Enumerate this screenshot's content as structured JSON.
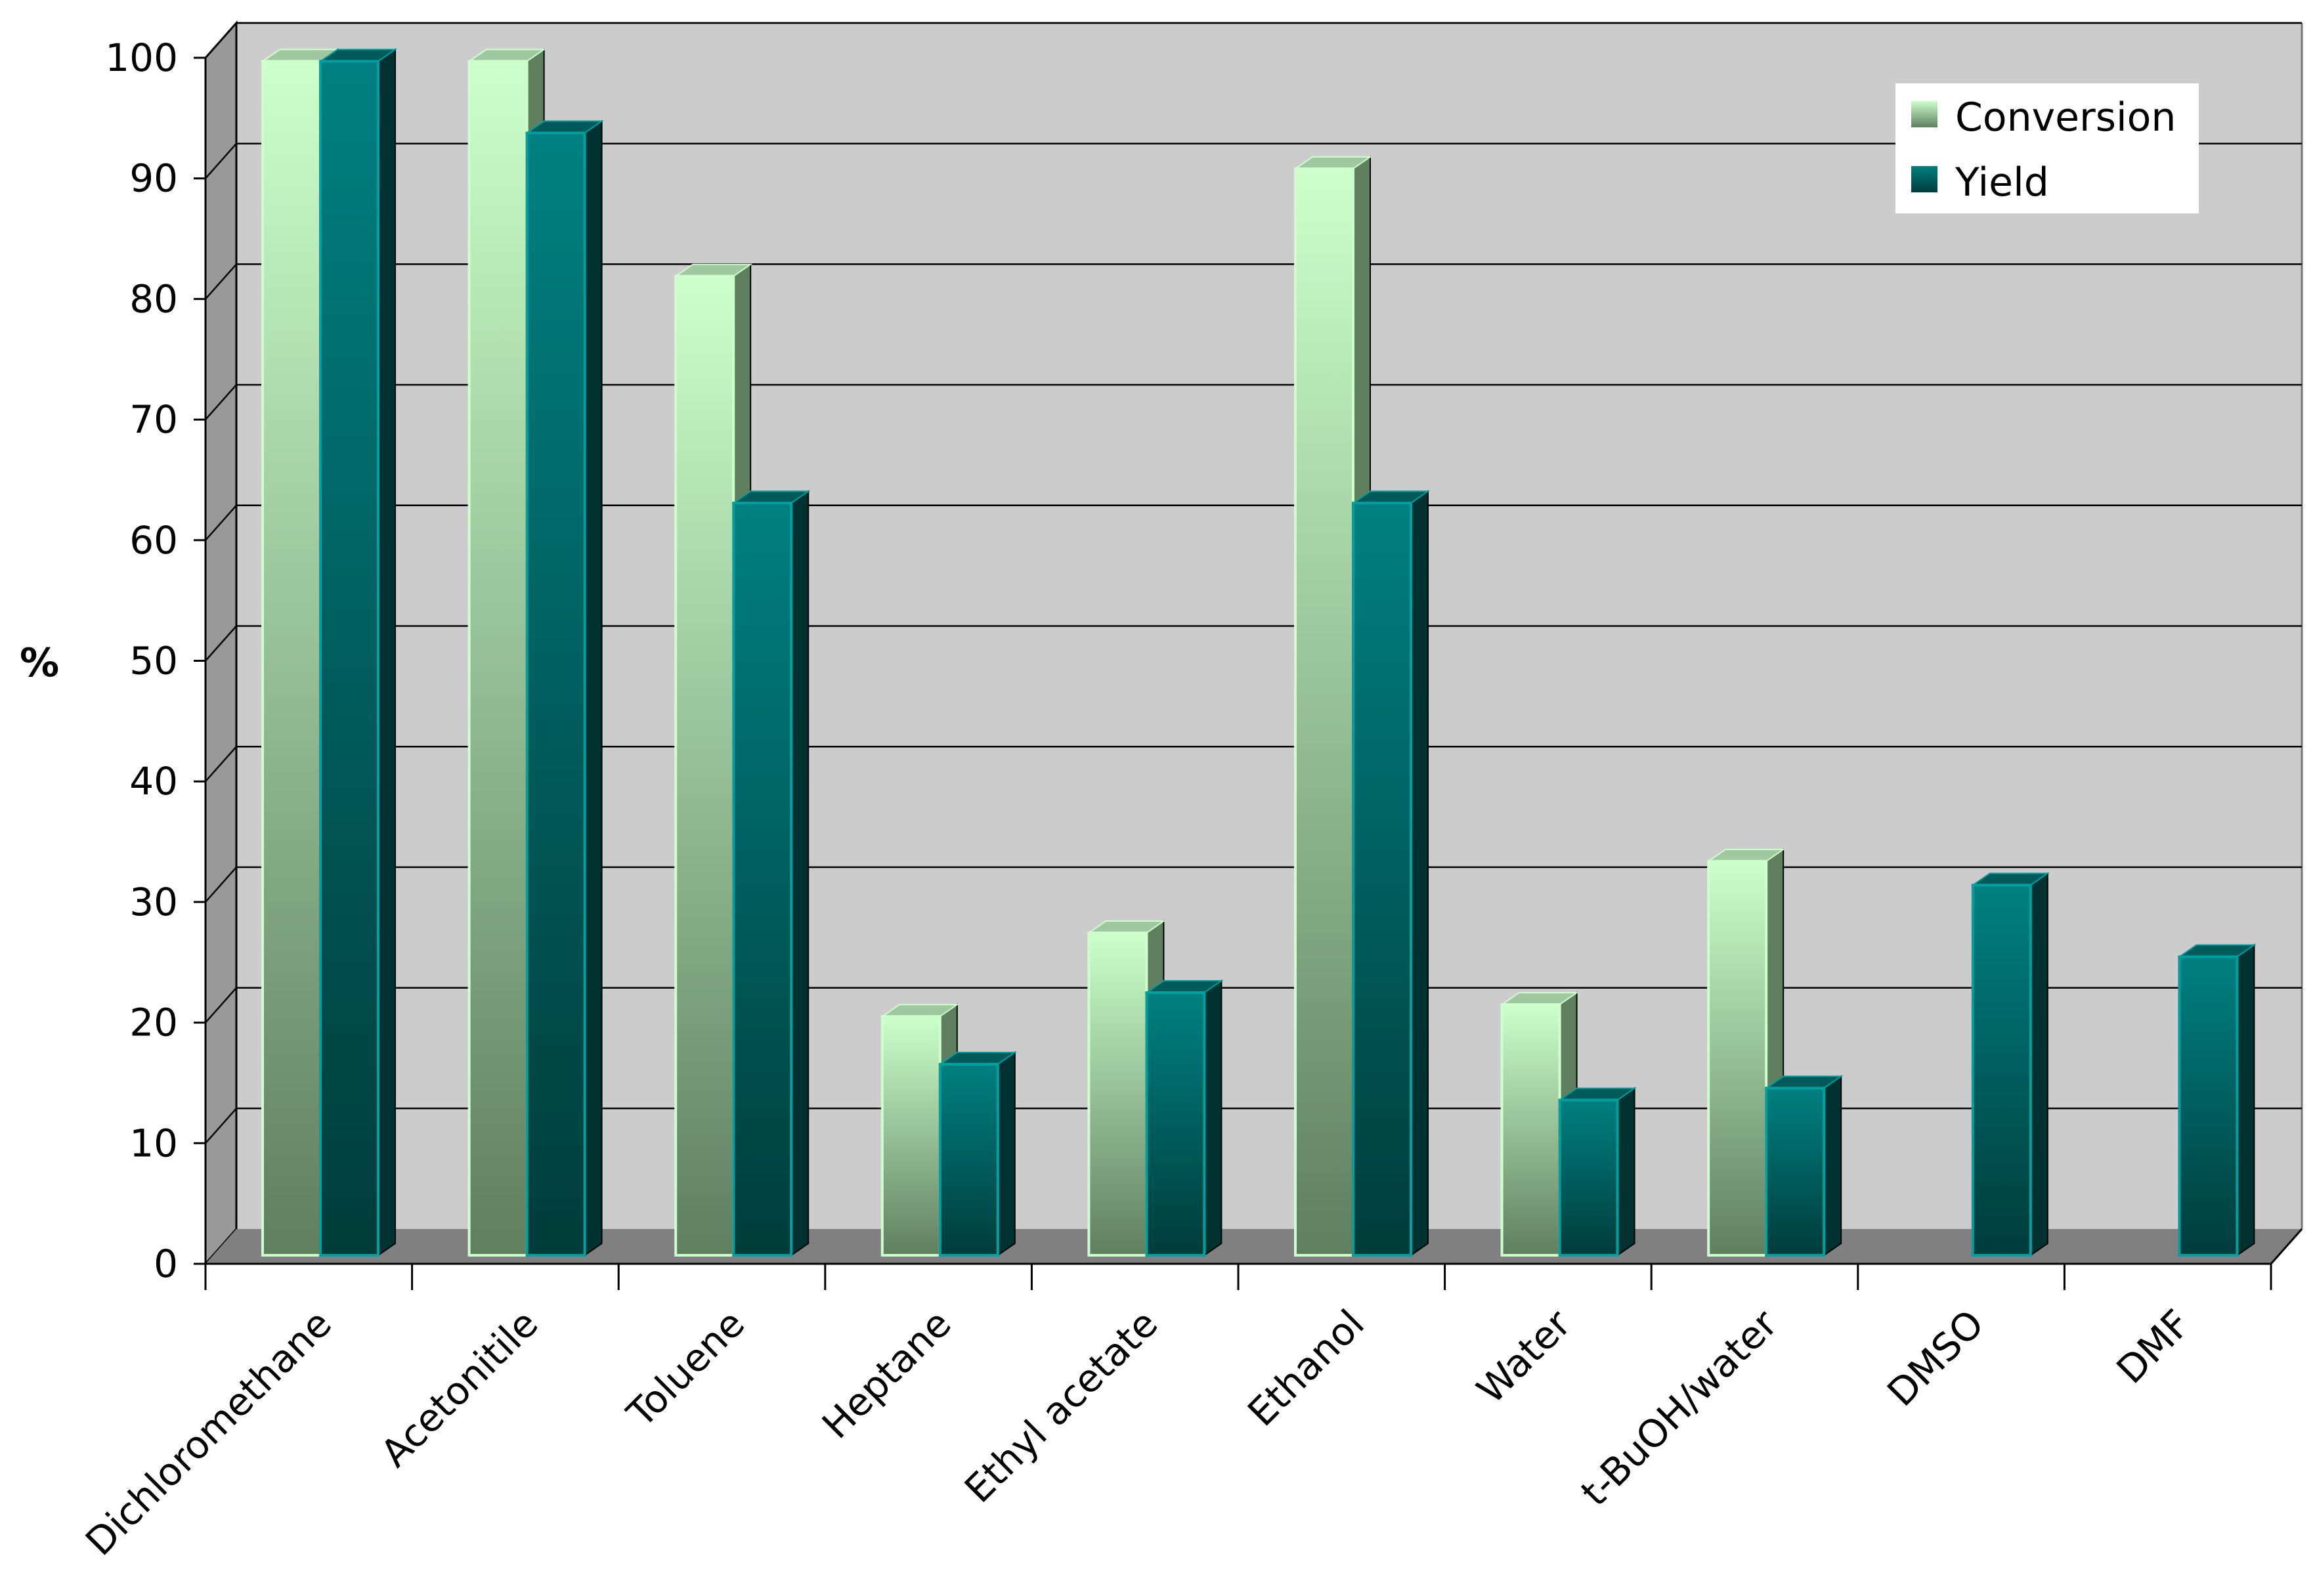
{
  "chart_data": {
    "type": "bar",
    "title": "",
    "xlabel": "",
    "ylabel": "%",
    "ylim": [
      0,
      100
    ],
    "yticks": [
      "0",
      "10",
      "20",
      "30",
      "40",
      "50",
      "60",
      "70",
      "80",
      "90",
      "100"
    ],
    "grid": true,
    "legend_position": "top-right",
    "categories": [
      "Dichloromethane",
      "Acetonitile",
      "Toluene",
      "Heptane",
      "Ethyl acetate",
      "Ethanol",
      "Water",
      "t-BuOH/water",
      "DMSO",
      "DMF"
    ],
    "series": [
      {
        "name": "Conversion",
        "values": [
          100,
          100,
          82,
          20,
          27,
          91,
          21,
          33,
          null,
          null
        ],
        "color": "#c8ffcc"
      },
      {
        "name": "Yield",
        "values": [
          100,
          94,
          63,
          16,
          22,
          63,
          13,
          14,
          31,
          25
        ],
        "color": "#008080"
      }
    ],
    "colors": {
      "wall": "#cccccc",
      "floor": "#808080",
      "conversion_top": "#ccffcc",
      "conversion_bottom": "#5f7f5f",
      "yield_top": "#008080",
      "yield_bottom": "#003c3c"
    }
  }
}
